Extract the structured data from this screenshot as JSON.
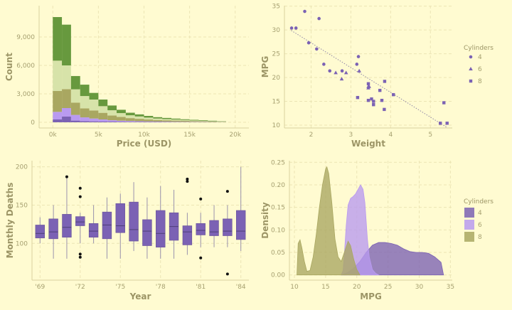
{
  "theme": {
    "background": "#fffbd1",
    "grid": "#ece5b4",
    "axis": "#d9d2a0",
    "tick_text": "#a6a070",
    "label_text": "#9c9566",
    "purple": "#7b62b4",
    "light_purple": "#b99af0",
    "olive": "#a9a761",
    "pale_green": "#d7e3a9",
    "green": "#67993e"
  },
  "chart_data": [
    {
      "id": "histogram",
      "type": "bar",
      "stacked": true,
      "xlabel": "Price (USD)",
      "ylabel": "Count",
      "xlim": [
        -1500,
        21500
      ],
      "ylim": [
        -600,
        12300
      ],
      "x_ticks": [
        0,
        5000,
        10000,
        15000,
        20000
      ],
      "x_tick_labels": [
        "0k",
        "5k",
        "10k",
        "15k",
        "20k"
      ],
      "y_ticks": [
        0,
        3000,
        6000,
        9000
      ],
      "y_tick_labels": [
        "0",
        "3,000",
        "6,000",
        "9,000"
      ],
      "bin_edges": [
        0,
        1000,
        2000,
        3000,
        4000,
        5000,
        6000,
        7000,
        8000,
        9000,
        10000,
        11000,
        12000,
        13000,
        14000,
        15000,
        16000,
        17000,
        18000,
        19000
      ],
      "series": [
        {
          "color": "#7b62b4",
          "values": [
            300,
            600,
            180,
            120,
            100,
            80,
            70,
            60,
            50,
            45,
            40,
            35,
            30,
            25,
            20,
            18,
            15,
            12,
            10
          ]
        },
        {
          "color": "#b99af0",
          "values": [
            800,
            900,
            600,
            400,
            300,
            220,
            150,
            110,
            90,
            70,
            55,
            45,
            40,
            35,
            30,
            25,
            20,
            15,
            10
          ]
        },
        {
          "color": "#a9a761",
          "values": [
            2200,
            2000,
            1300,
            950,
            850,
            700,
            500,
            400,
            300,
            250,
            200,
            160,
            140,
            120,
            100,
            80,
            70,
            50,
            30
          ]
        },
        {
          "color": "#d7e3a9",
          "values": [
            3200,
            2500,
            1400,
            1300,
            1150,
            700,
            550,
            400,
            300,
            250,
            200,
            160,
            130,
            110,
            90,
            70,
            60,
            40,
            20
          ]
        },
        {
          "color": "#67993e",
          "values": [
            4600,
            4300,
            1400,
            1200,
            700,
            700,
            500,
            350,
            270,
            220,
            180,
            140,
            120,
            100,
            80,
            70,
            60,
            50,
            30
          ]
        }
      ]
    },
    {
      "id": "scatter",
      "type": "scatter",
      "xlabel": "Weight",
      "ylabel": "MPG",
      "xlim": [
        1.33,
        5.55
      ],
      "ylim": [
        9.4,
        35.1
      ],
      "x_ticks": [
        2,
        3,
        4,
        5
      ],
      "x_tick_labels": [
        "2",
        "3",
        "4",
        "5"
      ],
      "y_ticks": [
        10,
        15,
        20,
        25,
        30,
        35
      ],
      "y_tick_labels": [
        "10",
        "15",
        "20",
        "25",
        "30",
        "35"
      ],
      "legend_title": "Cylinders",
      "legend_position": "right",
      "trend_line": {
        "x": [
          1.5,
          5.4
        ],
        "y": [
          29.9,
          9.6
        ]
      },
      "series": [
        {
          "name": "4",
          "marker": "circle",
          "color": "#7b62b4",
          "points": [
            [
              1.51,
              30.4
            ],
            [
              1.62,
              30.4
            ],
            [
              1.84,
              33.9
            ],
            [
              1.94,
              27.3
            ],
            [
              2.14,
              26.0
            ],
            [
              2.2,
              32.4
            ],
            [
              2.32,
              22.8
            ],
            [
              2.47,
              21.4
            ],
            [
              2.78,
              21.4
            ],
            [
              3.19,
              24.4
            ],
            [
              3.15,
              22.8
            ]
          ]
        },
        {
          "name": "6",
          "marker": "triangle",
          "color": "#7b62b4",
          "points": [
            [
              2.62,
              21.0
            ],
            [
              2.88,
              21.0
            ],
            [
              3.21,
              21.4
            ],
            [
              3.44,
              18.1
            ],
            [
              3.44,
              17.8
            ],
            [
              3.46,
              18.1
            ],
            [
              2.77,
              19.7
            ]
          ]
        },
        {
          "name": "8",
          "marker": "square",
          "color": "#7b62b4",
          "points": [
            [
              3.44,
              18.7
            ],
            [
              3.57,
              14.3
            ],
            [
              4.07,
              16.4
            ],
            [
              3.73,
              17.3
            ],
            [
              3.78,
              15.2
            ],
            [
              5.25,
              10.4
            ],
            [
              5.42,
              10.4
            ],
            [
              5.34,
              14.7
            ],
            [
              3.52,
              15.5
            ],
            [
              3.44,
              15.2
            ],
            [
              3.84,
              13.3
            ],
            [
              3.85,
              19.2
            ],
            [
              3.17,
              15.8
            ],
            [
              3.57,
              15.0
            ]
          ]
        }
      ]
    },
    {
      "id": "boxplot",
      "type": "box",
      "xlabel": "Year",
      "ylabel": "Monthly Deaths",
      "ylim": [
        52,
        208
      ],
      "x_tick_labels": [
        "'69",
        "'72",
        "'75",
        "'78",
        "'81",
        "'84"
      ],
      "y_ticks": [
        100,
        150,
        200
      ],
      "y_tick_labels": [
        "100",
        "150",
        "200"
      ],
      "color": "#7b62b4",
      "boxes": [
        {
          "year": 1969,
          "min": 100,
          "q1": 107,
          "median": 113,
          "q3": 124,
          "max": 134,
          "outliers": []
        },
        {
          "year": 1970,
          "min": 80,
          "q1": 106,
          "median": 115,
          "q3": 132,
          "max": 150,
          "outliers": []
        },
        {
          "year": 1971,
          "min": 80,
          "q1": 108,
          "median": 121,
          "q3": 138,
          "max": 187,
          "outliers": [
            187
          ]
        },
        {
          "year": 1972,
          "min": 100,
          "q1": 123,
          "median": 128,
          "q3": 135,
          "max": 140,
          "outliers": [
            172,
            161,
            86,
            82
          ]
        },
        {
          "year": 1973,
          "min": 100,
          "q1": 108,
          "median": 116,
          "q3": 126,
          "max": 150,
          "outliers": []
        },
        {
          "year": 1974,
          "min": 80,
          "q1": 106,
          "median": 124,
          "q3": 141,
          "max": 160,
          "outliers": []
        },
        {
          "year": 1975,
          "min": 80,
          "q1": 114,
          "median": 123,
          "q3": 152,
          "max": 165,
          "outliers": []
        },
        {
          "year": 1976,
          "min": 90,
          "q1": 103,
          "median": 118,
          "q3": 154,
          "max": 180,
          "outliers": []
        },
        {
          "year": 1977,
          "min": 80,
          "q1": 97,
          "median": 116,
          "q3": 131,
          "max": 160,
          "outliers": []
        },
        {
          "year": 1978,
          "min": 80,
          "q1": 95,
          "median": 113,
          "q3": 143,
          "max": 175,
          "outliers": []
        },
        {
          "year": 1979,
          "min": 80,
          "q1": 104,
          "median": 122,
          "q3": 140,
          "max": 170,
          "outliers": []
        },
        {
          "year": 1980,
          "min": 85,
          "q1": 98,
          "median": 115,
          "q3": 123,
          "max": 140,
          "outliers": [
            184,
            181
          ]
        },
        {
          "year": 1981,
          "min": 95,
          "q1": 111,
          "median": 117,
          "q3": 126,
          "max": 140,
          "outliers": [
            158,
            81
          ]
        },
        {
          "year": 1982,
          "min": 95,
          "q1": 110,
          "median": 115,
          "q3": 130,
          "max": 150,
          "outliers": []
        },
        {
          "year": 1983,
          "min": 95,
          "q1": 110,
          "median": 116,
          "q3": 132,
          "max": 150,
          "outliers": [
            168,
            60
          ]
        },
        {
          "year": 1984,
          "min": 90,
          "q1": 105,
          "median": 116,
          "q3": 143,
          "max": 200,
          "outliers": []
        }
      ]
    },
    {
      "id": "density",
      "type": "area",
      "xlabel": "MPG",
      "ylabel": "Density",
      "xlim": [
        9.2,
        35.3
      ],
      "ylim": [
        -0.0115,
        0.2536
      ],
      "x_ticks": [
        10,
        15,
        20,
        25,
        30,
        35
      ],
      "x_tick_labels": [
        "10",
        "15",
        "20",
        "25",
        "30",
        "35"
      ],
      "y_ticks": [
        0.0,
        0.05,
        0.1,
        0.15,
        0.2,
        0.25
      ],
      "y_tick_labels": [
        "0.00",
        "0.05",
        "0.10",
        "0.15",
        "0.20",
        "0.25"
      ],
      "legend_title": "Cylinders",
      "legend_position": "right",
      "series": [
        {
          "name": "4",
          "color": "#7b62b4",
          "x": [
            17.5,
            18.5,
            19.5,
            20.5,
            21.5,
            22.5,
            23.5,
            24.5,
            25.5,
            26.5,
            27.5,
            28.5,
            29.5,
            30.5,
            31.5,
            32.5,
            33.5,
            33.9
          ],
          "y": [
            0.0,
            0.005,
            0.015,
            0.03,
            0.05,
            0.066,
            0.072,
            0.072,
            0.07,
            0.066,
            0.058,
            0.052,
            0.05,
            0.05,
            0.048,
            0.04,
            0.028,
            0.0
          ]
        },
        {
          "name": "6",
          "color": "#b99af0",
          "x": [
            17.5,
            17.8,
            18.0,
            18.3,
            18.6,
            19.0,
            19.4,
            19.8,
            20.2,
            20.6,
            21.0,
            21.3,
            21.5,
            21.7,
            22.0,
            22.5,
            23.0,
            23.5
          ],
          "y": [
            0.0,
            0.01,
            0.045,
            0.11,
            0.155,
            0.17,
            0.174,
            0.18,
            0.19,
            0.2,
            0.19,
            0.16,
            0.12,
            0.08,
            0.04,
            0.012,
            0.004,
            0.0
          ]
        },
        {
          "name": "8",
          "color": "#a9a761",
          "x": [
            10.4,
            10.6,
            10.9,
            11.2,
            11.6,
            12.0,
            12.5,
            13.0,
            13.5,
            14.0,
            14.5,
            15.0,
            15.2,
            15.5,
            16.0,
            16.5,
            17.0,
            17.5,
            18.0,
            18.6,
            19.0,
            19.5,
            20.0,
            20.5
          ],
          "y": [
            0.0,
            0.07,
            0.078,
            0.06,
            0.03,
            0.008,
            0.01,
            0.04,
            0.09,
            0.15,
            0.2,
            0.235,
            0.24,
            0.225,
            0.16,
            0.08,
            0.04,
            0.03,
            0.05,
            0.075,
            0.065,
            0.035,
            0.012,
            0.0
          ]
        }
      ]
    }
  ]
}
